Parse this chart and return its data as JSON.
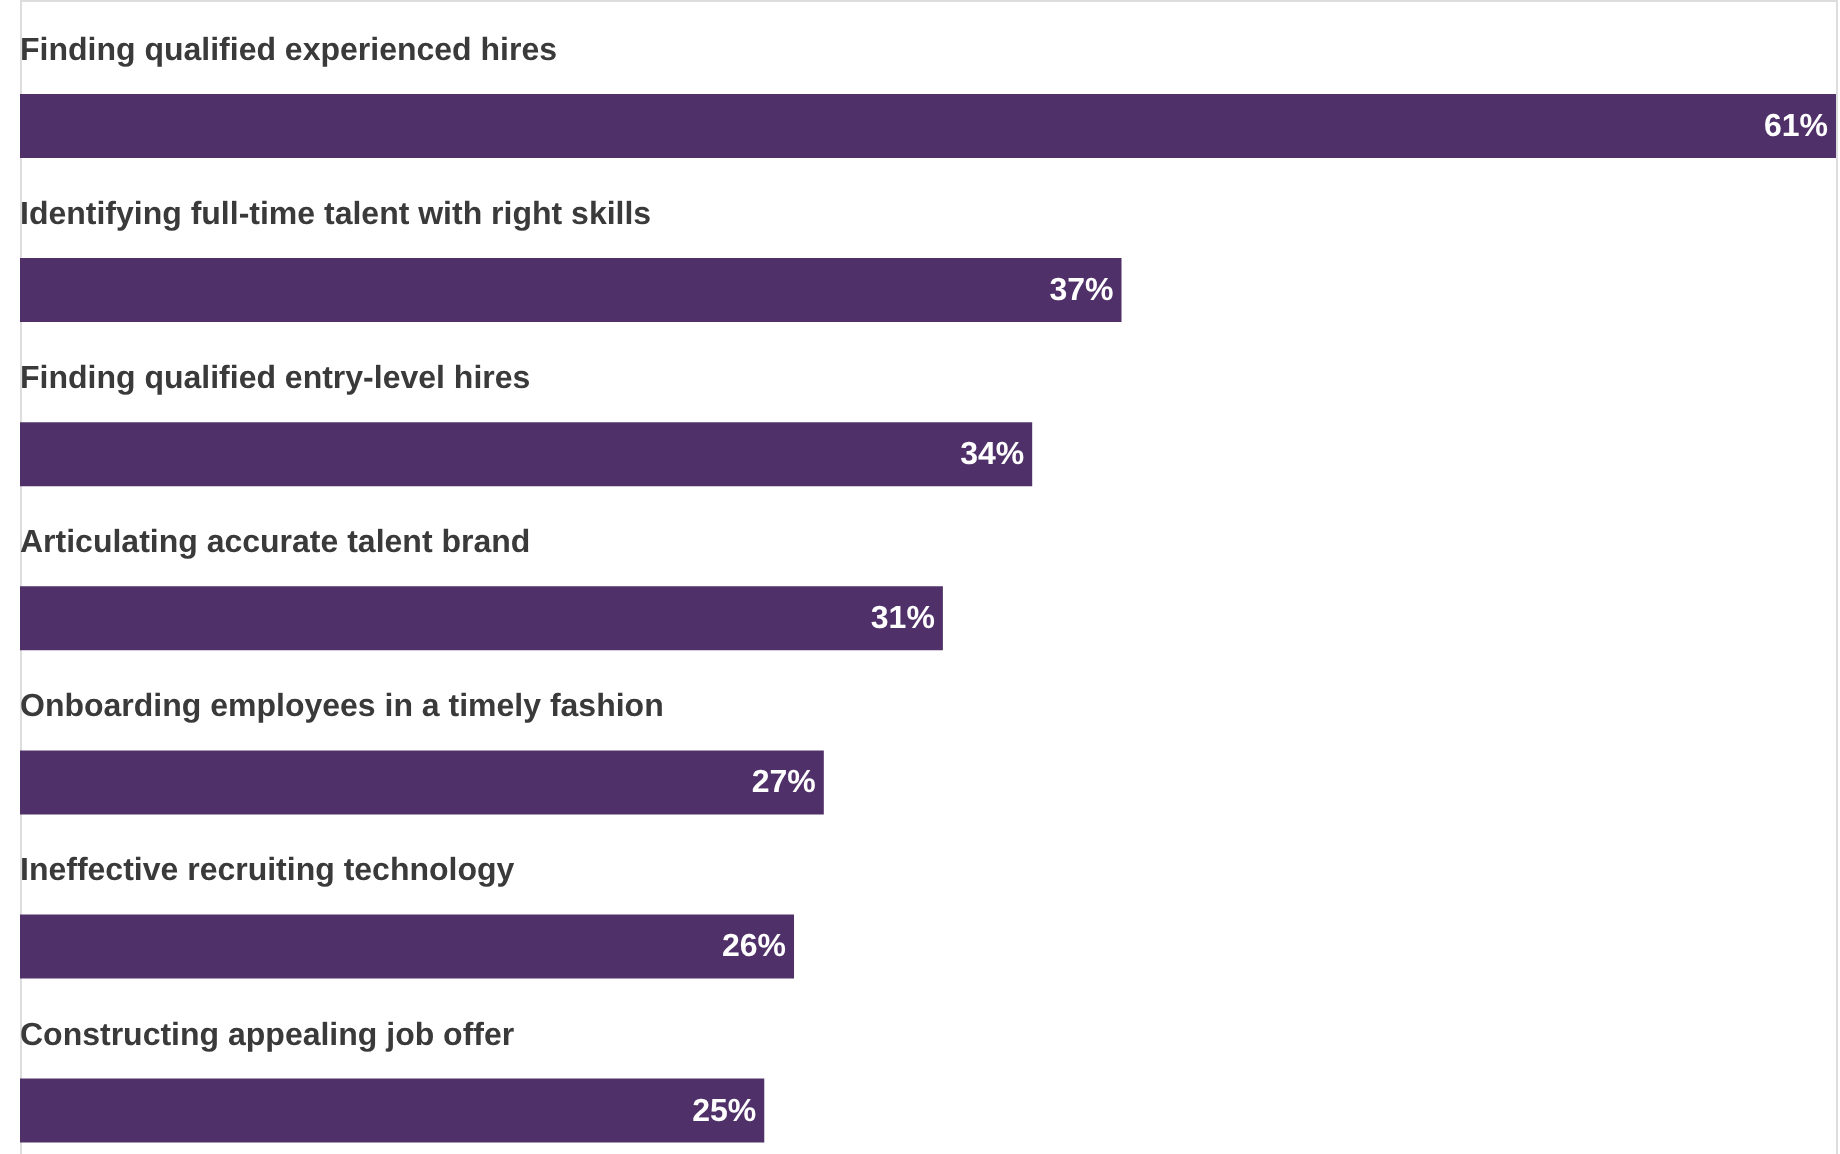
{
  "chart_data": {
    "type": "bar",
    "orientation": "horizontal",
    "categories": [
      "Finding qualified experienced hires",
      "Identifying full-time talent with right skills",
      "Finding qualified entry-level hires",
      "Articulating accurate talent brand",
      "Onboarding employees in a timely fashion",
      "Ineffective recruiting technology",
      "Constructing appealing job offer"
    ],
    "values": [
      61,
      37,
      34,
      31,
      27,
      26,
      25
    ],
    "value_labels": [
      "61%",
      "37%",
      "34%",
      "31%",
      "27%",
      "26%",
      "25%"
    ],
    "color": "#4f3068"
  }
}
